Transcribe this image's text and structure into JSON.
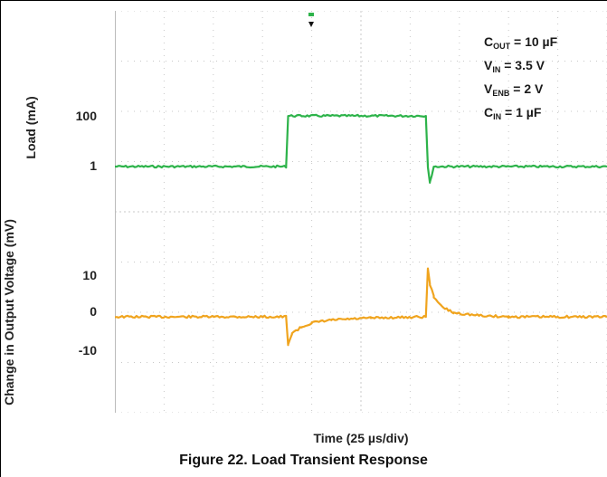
{
  "chart_data": {
    "type": "line",
    "xlabel": "Time (25 µs/div)",
    "caption": "Figure 22. Load Transient Response",
    "xlim": [
      0,
      250
    ],
    "top_panel": {
      "ylabel": "Load (mA)",
      "yticks": [
        "100",
        "1"
      ],
      "series": [
        {
          "color": "#2db34a",
          "x": [
            0,
            87,
            88,
            95,
            158,
            159,
            160,
            162,
            250
          ],
          "y": [
            1,
            1,
            100,
            100,
            100,
            1,
            -20,
            1,
            1
          ]
        }
      ]
    },
    "bottom_panel": {
      "ylabel": "Change in Output Voltage (mV)",
      "yticks": [
        "10",
        "0",
        "-10"
      ],
      "series": [
        {
          "color": "#f0a41e",
          "x": [
            0,
            87,
            88,
            90,
            95,
            100,
            110,
            130,
            158,
            159,
            160,
            162,
            166,
            172,
            185,
            200,
            250
          ],
          "y": [
            0,
            0,
            -7,
            -4,
            -2.5,
            -1.5,
            -0.8,
            -0.3,
            0,
            12,
            8,
            5,
            2.5,
            1,
            0.3,
            0,
            0
          ]
        }
      ]
    }
  },
  "annotations": {
    "line1": {
      "main": "C",
      "sub": "OUT",
      "rest": " = 10 µF"
    },
    "line2": {
      "main": "V",
      "sub": "IN",
      "rest": " = 3.5 V"
    },
    "line3": {
      "main": "V",
      "sub": "ENB",
      "rest": " = 2 V"
    },
    "line4": {
      "main": "C",
      "sub": "IN",
      "rest": " = 1 µF"
    }
  }
}
